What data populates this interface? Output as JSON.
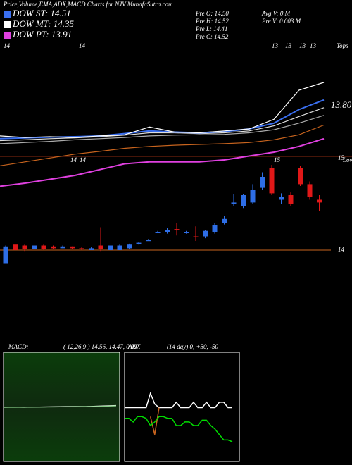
{
  "header": {
    "title": "Price,Volume,EMA,ADX,MACD Charts for NJV MunafaSutra.com",
    "legend": [
      {
        "label": "DOW ST: 14.51",
        "color": "#3a6ff0"
      },
      {
        "label": "DOW MT: 14.35",
        "color": "#ffffff"
      },
      {
        "label": "DOW PT: 13.91",
        "color": "#e040e0"
      }
    ],
    "stats": [
      "Pre   O: 14.50",
      "Pre   H: 14.52",
      "Pre   L: 14.41",
      "Pre   C: 14.52",
      "Avg V: 0  M",
      "Pre   V: 0.003 M"
    ]
  },
  "price_panel": {
    "marker_labels": [
      "14",
      "14",
      "13",
      "13",
      "13",
      "13"
    ],
    "corner_label": "Tops",
    "level": {
      "value": 13.8,
      "label": "13.80"
    },
    "lines": [
      {
        "color": "#e040e0",
        "values": [
          11.72,
          11.8,
          11.9,
          12.0,
          12.15,
          12.3,
          12.35,
          12.35,
          12.35,
          12.4,
          12.5,
          12.6,
          12.75,
          12.95
        ]
      },
      {
        "color": "#c8641e",
        "values": [
          12.25,
          12.35,
          12.45,
          12.55,
          12.62,
          12.7,
          12.75,
          12.78,
          12.8,
          12.82,
          12.85,
          12.92,
          13.05,
          13.3
        ]
      },
      {
        "color": "#aaaaaa",
        "values": [
          12.82,
          12.85,
          12.88,
          12.92,
          12.95,
          12.98,
          13.02,
          13.04,
          13.05,
          13.06,
          13.1,
          13.18,
          13.35,
          13.55
        ]
      },
      {
        "color": "#dddddd",
        "values": [
          12.9,
          12.92,
          12.95,
          12.97,
          13.0,
          13.04,
          13.1,
          13.1,
          13.08,
          13.1,
          13.15,
          13.28,
          13.52,
          13.75
        ]
      },
      {
        "color": "#3a6ff0",
        "values": [
          12.95,
          12.97,
          12.99,
          13.0,
          13.02,
          13.08,
          13.15,
          13.12,
          13.1,
          13.13,
          13.2,
          13.35,
          13.7,
          13.95
        ]
      },
      {
        "color": "#ffffff",
        "values": [
          13.02,
          12.98,
          13.0,
          12.98,
          13.02,
          13.05,
          13.25,
          13.12,
          13.1,
          13.15,
          13.2,
          13.45,
          14.2,
          14.4
        ]
      }
    ]
  },
  "candle_panel": {
    "marker_labels": [
      "14",
      "14",
      "15"
    ],
    "corner_label": "Lows",
    "yticks": [
      14,
      15
    ],
    "open": [
      13.85,
      14.06,
      14.05,
      14.01,
      14.05,
      14.04,
      14.02,
      14.04,
      14.02,
      14.0,
      14.05,
      14.0,
      14.0,
      14.02,
      14.07,
      14.11,
      14.2,
      14.2,
      14.23,
      14.19,
      14.15,
      14.15,
      14.2,
      14.3,
      14.5,
      14.48,
      14.52,
      14.68,
      14.9,
      14.55,
      14.6,
      14.9,
      14.72,
      14.55
    ],
    "high": [
      14.05,
      14.08,
      14.06,
      14.07,
      14.06,
      14.05,
      14.05,
      14.04,
      14.03,
      14.03,
      14.25,
      14.05,
      14.06,
      14.07,
      14.09,
      14.12,
      14.21,
      14.24,
      14.3,
      14.21,
      14.26,
      14.22,
      14.3,
      14.37,
      14.61,
      14.61,
      14.72,
      14.85,
      14.93,
      14.62,
      14.63,
      14.92,
      14.75,
      14.6
    ],
    "low": [
      13.85,
      14.0,
      13.99,
      14.0,
      14.0,
      14.01,
      14.02,
      14.01,
      14.0,
      14.0,
      13.99,
      14.0,
      14.0,
      14.01,
      14.06,
      14.1,
      14.2,
      14.18,
      14.16,
      14.18,
      14.1,
      14.13,
      14.18,
      14.28,
      14.48,
      14.46,
      14.5,
      14.66,
      14.6,
      14.5,
      14.48,
      14.7,
      14.55,
      14.43
    ],
    "close": [
      14.04,
      14.0,
      14.01,
      14.05,
      14.01,
      14.02,
      14.04,
      14.02,
      14.01,
      14.02,
      14.01,
      14.05,
      14.05,
      14.06,
      14.08,
      14.11,
      14.2,
      14.22,
      14.22,
      14.2,
      14.14,
      14.21,
      14.27,
      14.34,
      14.52,
      14.6,
      14.66,
      14.8,
      14.62,
      14.58,
      14.5,
      14.72,
      14.58,
      14.52
    ]
  },
  "macd_panel": {
    "title": "MACD:",
    "params": "( 12,26,9 ) 14.56, 14.47, 0.09",
    "lines": [
      {
        "color": "#ffffff",
        "values": [
          0.0,
          0.02,
          0.0,
          0.03,
          0.05,
          0.08,
          0.1,
          0.12,
          0.1,
          0.15,
          0.2,
          0.25
        ]
      },
      {
        "color": "#88cc88",
        "values": [
          0.0,
          0.0,
          0.01,
          0.02,
          0.03,
          0.05,
          0.07,
          0.09,
          0.1,
          0.12,
          0.15,
          0.2
        ]
      }
    ]
  },
  "adx_panel": {
    "title": "ADX",
    "params": "(14 day) 0, +50, -50",
    "lines": [
      {
        "color": "#ffffff",
        "values": [
          30,
          30,
          30,
          30,
          30,
          30,
          38,
          32,
          30,
          30,
          30,
          30,
          33,
          30,
          30,
          30,
          33,
          30,
          30,
          33,
          30,
          30,
          33,
          33,
          30,
          30
        ]
      },
      {
        "color": "#c8641e",
        "values": [
          null,
          null,
          null,
          null,
          null,
          null,
          25,
          15,
          30,
          null,
          null,
          null,
          null,
          null,
          null,
          null,
          null,
          null,
          null,
          null,
          null,
          null,
          null,
          null,
          null,
          null
        ]
      },
      {
        "color": "#00dd00",
        "values": [
          24,
          24,
          22,
          25,
          25,
          24,
          20,
          22,
          25,
          25,
          24,
          24,
          20,
          20,
          22,
          22,
          20,
          20,
          23,
          23,
          20,
          18,
          15,
          12,
          12,
          11
        ]
      }
    ]
  }
}
